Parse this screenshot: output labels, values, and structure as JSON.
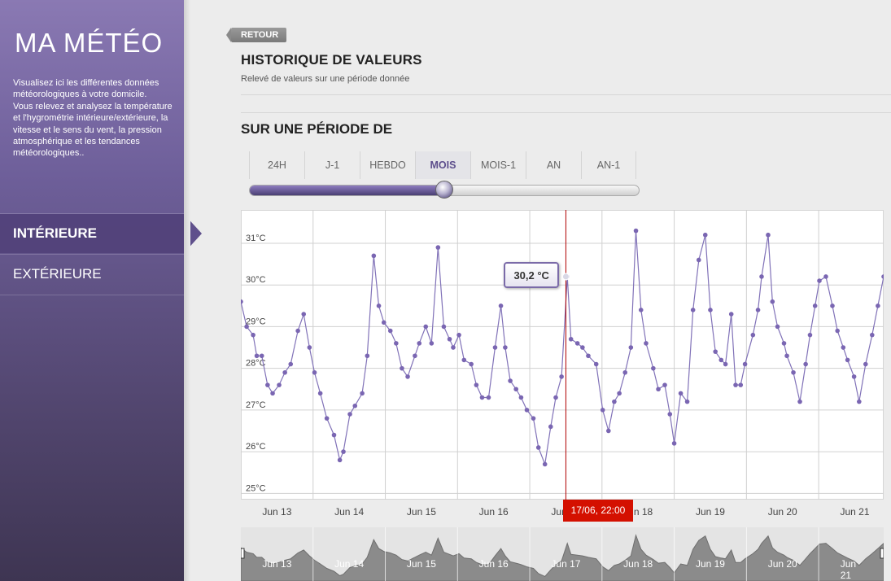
{
  "app": {
    "title": "MA MÉTÉO",
    "intro": [
      "Visualisez ici les différentes données météorologiques à votre domicile.",
      "Vous relevez et analysez la température et l'hygrométrie intérieure/extérieure, la vitesse et le sens du vent, la pression atmosphérique et les tendances météorologiques.."
    ]
  },
  "nav": {
    "items": [
      {
        "label": "INTÉRIEURE",
        "active": true
      },
      {
        "label": "EXTÉRIEURE",
        "active": false
      }
    ]
  },
  "main": {
    "back_label": "RETOUR",
    "title": "HISTORIQUE DE VALEURS",
    "subtitle": "Relevé de valeurs sur une période donnée",
    "period_title": "SUR UNE PÉRIODE DE",
    "tabs": [
      "24H",
      "J-1",
      "HEBDO",
      "MOIS",
      "MOIS-1",
      "AN",
      "AN-1"
    ],
    "active_tab": "MOIS",
    "slider_value_percent": 50
  },
  "accent": {
    "purple": "#5d4e8c",
    "line": "#8172b8",
    "point": "#7a66b2",
    "cursor": "#b00000"
  },
  "tooltip": {
    "value_label": "30,2 °C"
  },
  "cursor": {
    "label": "17/06, 22:00"
  },
  "chart_data": {
    "type": "line",
    "x_unit": "days (Jun)",
    "x_ticks": [
      13,
      14,
      15,
      16,
      17,
      18,
      19,
      20,
      21
    ],
    "x_tick_labels": [
      "Jun 13",
      "Jun 14",
      "Jun 15",
      "Jun 16",
      "Jun 17",
      "Jun 18",
      "Jun 19",
      "Jun 20",
      "Jun 21"
    ],
    "y_ticks": [
      25,
      26,
      27,
      28,
      29,
      30,
      31
    ],
    "y_tick_labels": [
      "25°C",
      "26°C",
      "27°C",
      "28°C",
      "29°C",
      "30°C",
      "31°C"
    ],
    "xlim": [
      12.5,
      21.4
    ],
    "ylim": [
      24.85,
      31.8
    ],
    "grid": true,
    "series": [
      {
        "x": [
          12.5,
          12.58,
          12.67,
          12.72,
          12.79,
          12.87,
          12.94,
          13.03,
          13.11,
          13.19,
          13.29,
          13.37,
          13.45,
          13.52,
          13.6,
          13.69,
          13.79,
          13.87,
          13.92,
          14.01,
          14.08,
          14.18,
          14.25,
          14.34,
          14.41,
          14.48,
          14.57,
          14.65,
          14.73,
          14.81,
          14.91,
          14.97,
          15.06,
          15.14,
          15.23,
          15.31,
          15.39,
          15.44,
          15.52,
          15.59,
          15.69,
          15.76,
          15.84,
          15.93,
          16.02,
          16.1,
          16.16,
          16.23,
          16.31,
          16.38,
          16.46,
          16.55,
          16.62,
          16.71,
          16.79,
          16.86,
          16.94,
          17.02,
          17.07,
          17.16,
          17.23,
          17.31,
          17.42,
          17.51,
          17.59,
          17.67,
          17.74,
          17.82,
          17.9,
          17.97,
          18.04,
          18.11,
          18.21,
          18.28,
          18.37,
          18.44,
          18.5,
          18.59,
          18.68,
          18.76,
          18.84,
          18.93,
          19.0,
          19.07,
          19.15,
          19.21,
          19.29,
          19.35,
          19.42,
          19.48,
          19.59,
          19.66,
          19.71,
          19.8,
          19.86,
          19.93,
          20.02,
          20.06,
          20.15,
          20.24,
          20.32,
          20.38,
          20.45,
          20.51,
          20.6,
          20.69,
          20.76,
          20.84,
          20.9,
          20.99,
          21.06,
          21.15,
          21.24,
          21.32,
          21.4
        ],
        "y": [
          29.6,
          29.0,
          28.8,
          28.3,
          28.3,
          27.6,
          27.4,
          27.6,
          27.9,
          28.1,
          28.9,
          29.3,
          28.5,
          27.9,
          27.4,
          26.8,
          26.4,
          25.8,
          26.0,
          26.9,
          27.1,
          27.4,
          28.3,
          30.7,
          29.5,
          29.1,
          28.9,
          28.6,
          28.0,
          27.8,
          28.3,
          28.6,
          29.0,
          28.6,
          30.9,
          29.0,
          28.7,
          28.5,
          28.8,
          28.2,
          28.1,
          27.6,
          27.3,
          27.3,
          28.5,
          29.5,
          28.5,
          27.7,
          27.5,
          27.3,
          27.0,
          26.8,
          26.1,
          25.7,
          26.6,
          27.3,
          27.8,
          30.2,
          28.7,
          28.6,
          28.5,
          28.3,
          28.1,
          27.0,
          26.5,
          27.2,
          27.4,
          27.9,
          28.5,
          31.3,
          29.4,
          28.6,
          28.0,
          27.5,
          27.6,
          26.9,
          26.2,
          27.4,
          27.2,
          29.4,
          30.6,
          31.2,
          29.4,
          28.4,
          28.2,
          28.1,
          29.3,
          27.6,
          27.6,
          28.1,
          28.8,
          29.4,
          30.2,
          31.2,
          29.6,
          29.0,
          28.6,
          28.3,
          27.9,
          27.2,
          28.1,
          28.8,
          29.5,
          30.1,
          30.2,
          29.5,
          28.9,
          28.5,
          28.2,
          27.8,
          27.2,
          28.1,
          28.8,
          29.5,
          30.2
        ]
      }
    ]
  },
  "navigator": {
    "labels": [
      "Jun 13",
      "Jun 14",
      "Jun 15",
      "Jun 16",
      "Jun 17",
      "Jun 18",
      "Jun 19",
      "Jun 20",
      "Jun 21"
    ]
  }
}
